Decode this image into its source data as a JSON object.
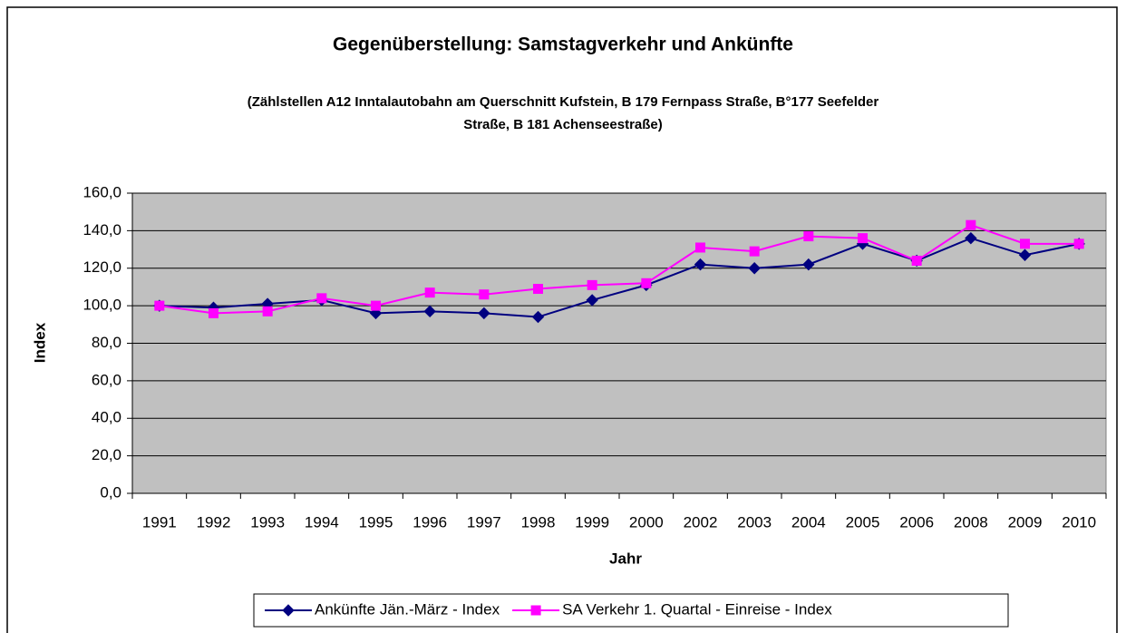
{
  "chart_data": {
    "type": "line",
    "title": "Gegenüberstellung: Samstagverkehr und Ankünfte",
    "subtitle": [
      "(Zählstellen A12 Inntalautobahn am Querschnitt Kufstein, B 179 Fernpass Straße, B°177 Seefelder",
      "Straße, B 181 Achenseestraße)"
    ],
    "x_label": "Jahr",
    "y_label": "Index",
    "categories": [
      "1991",
      "1992",
      "1993",
      "1994",
      "1995",
      "1996",
      "1997",
      "1998",
      "1999",
      "2000",
      "2002",
      "2003",
      "2004",
      "2005",
      "2006",
      "2008",
      "2009",
      "2010"
    ],
    "series": [
      {
        "name": "Ankünfte Jän.-März - Index",
        "color": "#000080",
        "marker": "diamond",
        "values": [
          100,
          99,
          101,
          103,
          96,
          97,
          96,
          94,
          103,
          111,
          122,
          120,
          122,
          133,
          124,
          136,
          127,
          133
        ]
      },
      {
        "name": "SA Verkehr 1. Quartal - Einreise - Index",
        "color": "#ff00ff",
        "marker": "square",
        "values": [
          100,
          96,
          97,
          104,
          100,
          107,
          106,
          109,
          111,
          112,
          131,
          129,
          137,
          136,
          124,
          143,
          133,
          133
        ]
      }
    ],
    "ylim": [
      0,
      160
    ],
    "yticks": [
      {
        "value": 0,
        "label": "0,0"
      },
      {
        "value": 20,
        "label": "20,0"
      },
      {
        "value": 40,
        "label": "40,0"
      },
      {
        "value": 60,
        "label": "60,0"
      },
      {
        "value": 80,
        "label": "80,0"
      },
      {
        "value": 100,
        "label": "100,0"
      },
      {
        "value": 120,
        "label": "120,0"
      },
      {
        "value": 140,
        "label": "140,0"
      },
      {
        "value": 160,
        "label": "160,0"
      }
    ],
    "grid": true,
    "plot_background": "#c0c0c0",
    "legend": "bottom"
  }
}
